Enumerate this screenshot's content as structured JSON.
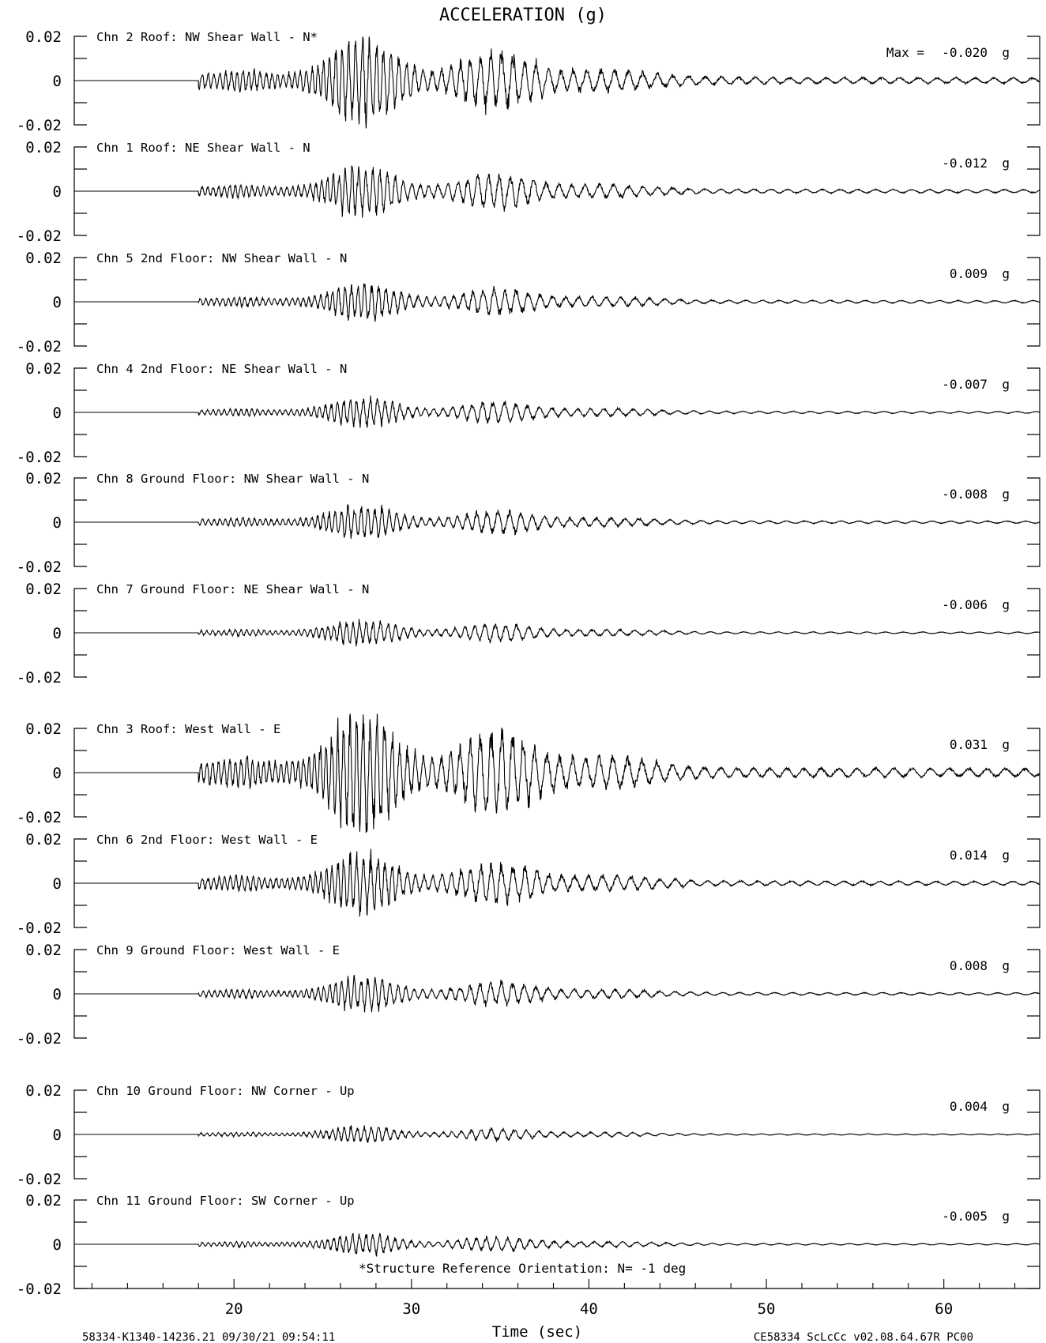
{
  "chart_data": {
    "type": "line",
    "title": "ACCELERATION (g)",
    "xlabel": "Time (sec)",
    "xlim": [
      11.0,
      65.4
    ],
    "x_ticks": [
      20,
      30,
      40,
      50,
      60
    ],
    "ylim": [
      -0.02,
      0.02
    ],
    "y_ticks": [
      0.02,
      0,
      -0.02
    ],
    "y_tick_labels": [
      "0.02",
      "0",
      "-0.02"
    ],
    "max_prefix": "Max =",
    "unit": "g",
    "reference_note": "*Structure Reference Orientation: N= -1 deg",
    "footer_left": "58334-K1340-14236.21 09/30/21 09:54:11",
    "footer_right": "CE58334  ScLcCc  v02.08.64.67R PC00",
    "series": [
      {
        "label": "Chn 2  Roof: NW Shear Wall - N*",
        "max": "-0.020",
        "max_value": -0.02,
        "amp": 1.0
      },
      {
        "label": "Chn 1  Roof: NE Shear Wall - N",
        "max": "-0.012",
        "max_value": -0.012,
        "amp": 0.6
      },
      {
        "label": "Chn 5  2nd Floor: NW Shear Wall - N",
        "max": "0.009",
        "max_value": 0.009,
        "amp": 0.45
      },
      {
        "label": "Chn 4  2nd Floor: NE Shear Wall - N",
        "max": "-0.007",
        "max_value": -0.007,
        "amp": 0.35
      },
      {
        "label": "Chn 8  Ground Floor: NW Shear Wall - N",
        "max": "-0.008",
        "max_value": -0.008,
        "amp": 0.4
      },
      {
        "label": "Chn 7  Ground Floor: NE Shear Wall - N",
        "max": "-0.006",
        "max_value": -0.006,
        "amp": 0.3
      },
      {
        "label": "Chn 3  Roof: West Wall - E",
        "max": "0.031",
        "max_value": 0.031,
        "amp": 1.45
      },
      {
        "label": "Chn 6  2nd Floor: West Wall - E",
        "max": "0.014",
        "max_value": 0.014,
        "amp": 0.7
      },
      {
        "label": "Chn 9  Ground Floor: West Wall - E",
        "max": "0.008",
        "max_value": 0.008,
        "amp": 0.4
      },
      {
        "label": "Chn 10  Ground Floor: NW Corner - Up",
        "max": "0.004",
        "max_value": 0.004,
        "amp": 0.2
      },
      {
        "label": "Chn 11  Ground Floor: SW Corner - Up",
        "max": "-0.005",
        "max_value": -0.005,
        "amp": 0.25
      }
    ]
  }
}
